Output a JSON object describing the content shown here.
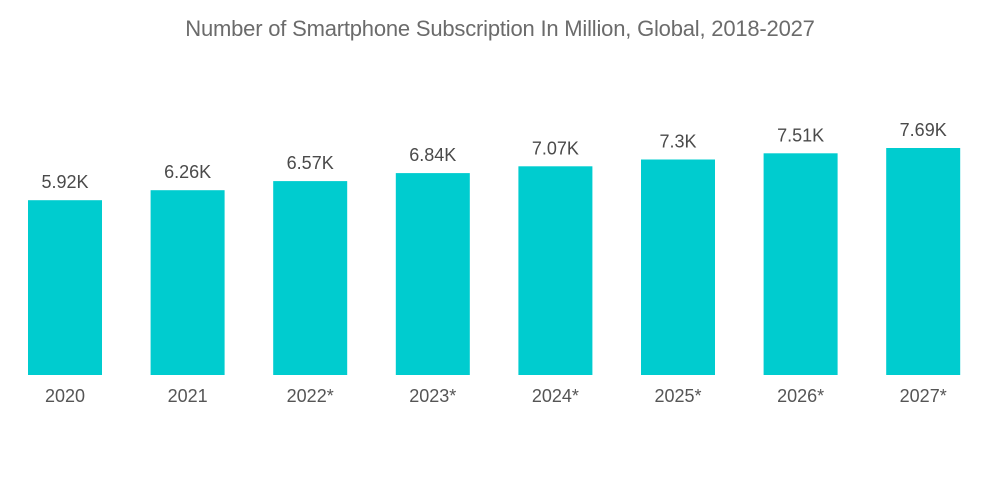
{
  "chart_data": {
    "type": "bar",
    "title": "Number of Smartphone Subscription In Million, Global, 2018-2027",
    "categories": [
      "2020",
      "2021",
      "2022*",
      "2023*",
      "2024*",
      "2025*",
      "2026*",
      "2027*"
    ],
    "values": [
      5.92,
      6.26,
      6.57,
      6.84,
      7.07,
      7.3,
      7.51,
      7.69
    ],
    "data_labels": [
      "5.92K",
      "6.26K",
      "6.57K",
      "6.84K",
      "7.07K",
      "7.3K",
      "7.51K",
      "7.69K"
    ],
    "unit": "K",
    "xlabel": "",
    "ylabel": "",
    "ylim": [
      0,
      7.69
    ],
    "grid": false,
    "legend": "none",
    "colors": {
      "bar": "#00cccf",
      "title": "#6b6b6b",
      "label": "#4a4a4a"
    }
  }
}
